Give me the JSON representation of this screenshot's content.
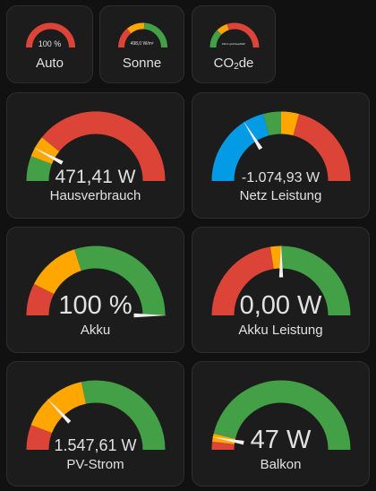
{
  "small_gauges": [
    {
      "id": "auto",
      "label": "Auto",
      "value_text": "100 %",
      "value": 100,
      "min": 0,
      "max": 100,
      "needle": false,
      "segments": [
        {
          "from": 0,
          "to": 100,
          "color": "#db4437"
        }
      ]
    },
    {
      "id": "sonne",
      "label": "Sonne",
      "value_text": "498,0 W/m²",
      "value": 498,
      "min": 0,
      "max": 1000,
      "needle": false,
      "segments": [
        {
          "from": 0,
          "to": 280,
          "color": "#db4437"
        },
        {
          "from": 280,
          "to": 520,
          "color": "#ffa600"
        },
        {
          "from": 520,
          "to": 1000,
          "color": "#43a047"
        }
      ]
    },
    {
      "id": "co2",
      "label_prefix": "CO",
      "label_sub": "2",
      "label_suffix": "de",
      "value_text": "190.0 gCO2eq/kWh",
      "value": 190,
      "min": 0,
      "max": 600,
      "needle": false,
      "segments": [
        {
          "from": 0,
          "to": 150,
          "color": "#43a047"
        },
        {
          "from": 150,
          "to": 240,
          "color": "#ffa600"
        },
        {
          "from": 240,
          "to": 600,
          "color": "#db4437"
        }
      ]
    }
  ],
  "large_gauges": [
    {
      "id": "hausverbrauch",
      "label": "Hausverbrauch",
      "value_text": "471,41 W",
      "value": 471.41,
      "min": 0,
      "max": 3000,
      "needle": true,
      "segments": [
        {
          "from": 0,
          "to": 350,
          "color": "#43a047"
        },
        {
          "from": 350,
          "to": 650,
          "color": "#ffa600"
        },
        {
          "from": 650,
          "to": 3000,
          "color": "#db4437"
        }
      ]
    },
    {
      "id": "netz-leistung",
      "label": "Netz Leistung",
      "value_text": "-1.074,93 W",
      "value": -1074.93,
      "min": -3000,
      "max": 3000,
      "needle": true,
      "segments": [
        {
          "from": -3000,
          "to": -500,
          "color": "#039be5"
        },
        {
          "from": -500,
          "to": 0,
          "color": "#43a047"
        },
        {
          "from": 0,
          "to": 500,
          "color": "#ffa600"
        },
        {
          "from": 500,
          "to": 3000,
          "color": "#db4437"
        }
      ]
    },
    {
      "id": "akku",
      "label": "Akku",
      "value_text": "100 %",
      "value": 100,
      "min": 0,
      "max": 100,
      "needle": true,
      "segments": [
        {
          "from": 0,
          "to": 15,
          "color": "#db4437"
        },
        {
          "from": 15,
          "to": 40,
          "color": "#ffa600"
        },
        {
          "from": 40,
          "to": 100,
          "color": "#43a047"
        }
      ]
    },
    {
      "id": "akku-leistung",
      "label": "Akku Leistung",
      "value_text": "0,00 W",
      "value": 0,
      "min": -1000,
      "max": 1000,
      "needle": true,
      "segments": [
        {
          "from": -1000,
          "to": -100,
          "color": "#db4437"
        },
        {
          "from": -100,
          "to": 0,
          "color": "#ffa600"
        },
        {
          "from": 0,
          "to": 1000,
          "color": "#43a047"
        }
      ]
    },
    {
      "id": "pv-strom",
      "label": "PV-Strom",
      "value_text": "1.547,61 W",
      "value": 1547.61,
      "min": 0,
      "max": 6000,
      "needle": true,
      "segments": [
        {
          "from": 0,
          "to": 700,
          "color": "#db4437"
        },
        {
          "from": 700,
          "to": 2600,
          "color": "#ffa600"
        },
        {
          "from": 2600,
          "to": 6000,
          "color": "#43a047"
        }
      ]
    },
    {
      "id": "balkon",
      "label": "Balkon",
      "value_text": "47 W",
      "value": 47,
      "min": 0,
      "max": 800,
      "needle": true,
      "segments": [
        {
          "from": 0,
          "to": 30,
          "color": "#db4437"
        },
        {
          "from": 30,
          "to": 60,
          "color": "#ffa600"
        },
        {
          "from": 60,
          "to": 800,
          "color": "#43a047"
        }
      ]
    }
  ]
}
